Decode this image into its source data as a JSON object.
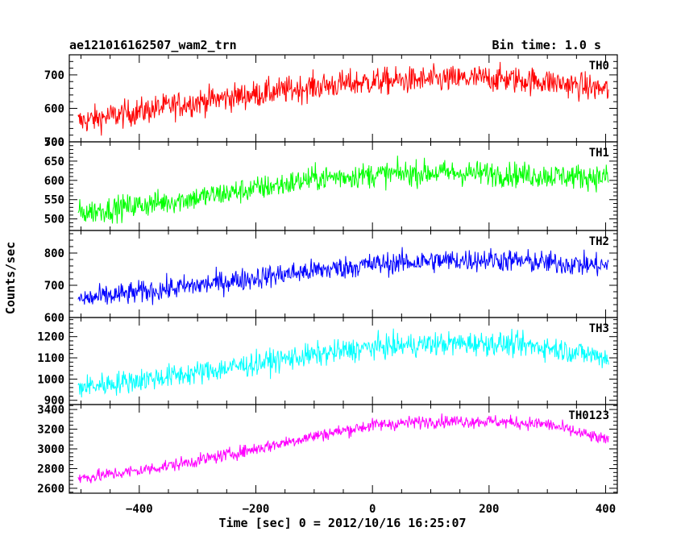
{
  "chart_data": {
    "type": "line",
    "title_left": "ae121016162507_wam2_trn",
    "title_right": "Bin time: 1.0 s",
    "xlabel": "Time [sec] 0 = 2012/10/16 16:25:07",
    "ylabel": "Counts/sec",
    "xlim": [
      -520,
      420
    ],
    "xticks": [
      -400,
      -200,
      0,
      200,
      400
    ],
    "x_range": [
      -505,
      405
    ],
    "bin_time": 1.0,
    "grid": false,
    "panels": [
      {
        "name": "TH0",
        "color": "#ff0000",
        "ylim": [
          500,
          760
        ],
        "yticks": [
          500,
          600,
          700
        ],
        "trend": [
          [
            -505,
            560
          ],
          [
            -300,
            620
          ],
          [
            -100,
            665
          ],
          [
            0,
            680
          ],
          [
            100,
            685
          ],
          [
            200,
            690
          ],
          [
            300,
            680
          ],
          [
            405,
            655
          ]
        ],
        "noise": 40
      },
      {
        "name": "TH1",
        "color": "#00ff00",
        "ylim": [
          470,
          700
        ],
        "yticks": [
          500,
          550,
          600,
          650,
          700
        ],
        "trend": [
          [
            -505,
            515
          ],
          [
            -300,
            555
          ],
          [
            -150,
            590
          ],
          [
            -100,
            605
          ],
          [
            0,
            615
          ],
          [
            100,
            620
          ],
          [
            200,
            618
          ],
          [
            300,
            612
          ],
          [
            405,
            608
          ]
        ],
        "noise": 32
      },
      {
        "name": "TH2",
        "color": "#0000ff",
        "ylim": [
          600,
          870
        ],
        "yticks": [
          600,
          700,
          800
        ],
        "trend": [
          [
            -505,
            655
          ],
          [
            -300,
            700
          ],
          [
            -150,
            735
          ],
          [
            0,
            765
          ],
          [
            100,
            775
          ],
          [
            200,
            780
          ],
          [
            300,
            770
          ],
          [
            405,
            760
          ]
        ],
        "noise": 35
      },
      {
        "name": "TH3",
        "color": "#00ffff",
        "ylim": [
          880,
          1290
        ],
        "yticks": [
          900,
          1000,
          1100,
          1200
        ],
        "trend": [
          [
            -505,
            960
          ],
          [
            -300,
            1030
          ],
          [
            -150,
            1095
          ],
          [
            0,
            1150
          ],
          [
            100,
            1165
          ],
          [
            200,
            1170
          ],
          [
            300,
            1150
          ],
          [
            405,
            1100
          ]
        ],
        "noise": 55
      },
      {
        "name": "TH0123",
        "color": "#ff00ff",
        "ylim": [
          2550,
          3450
        ],
        "yticks": [
          2600,
          2800,
          3000,
          3200,
          3400
        ],
        "trend": [
          [
            -505,
            2700
          ],
          [
            -400,
            2780
          ],
          [
            -300,
            2880
          ],
          [
            -200,
            3000
          ],
          [
            -100,
            3130
          ],
          [
            0,
            3240
          ],
          [
            100,
            3280
          ],
          [
            200,
            3280
          ],
          [
            300,
            3250
          ],
          [
            405,
            3080
          ]
        ],
        "noise": 65
      }
    ]
  }
}
